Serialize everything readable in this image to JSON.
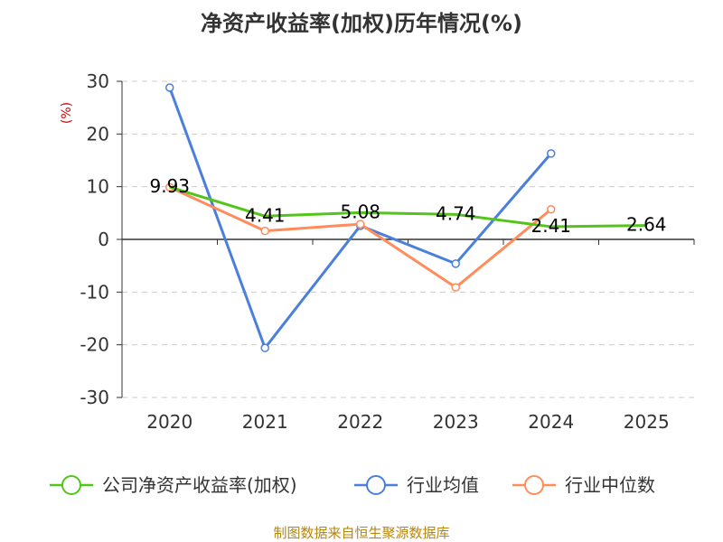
{
  "chart_data": {
    "type": "line",
    "title": "净资产收益率(加权)历年情况(%)",
    "ylabel": "(%)",
    "categories": [
      "2020",
      "2021",
      "2022",
      "2023",
      "2024",
      "2025"
    ],
    "ylim": [
      -30,
      30
    ],
    "yticks": [
      "30",
      "20",
      "10",
      "0",
      "-10",
      "-20",
      "-30"
    ],
    "grid": true,
    "legend_position": "bottom",
    "series": [
      {
        "name": "公司净资产收益率(加权)",
        "color": "#52c41a",
        "values": [
          9.93,
          4.41,
          5.08,
          4.74,
          2.41,
          2.64
        ],
        "labels": [
          "9.93",
          "4.41",
          "5.08",
          "4.74",
          "2.41",
          "2.64"
        ],
        "markers": false
      },
      {
        "name": "行业均值",
        "color": "#4a7fdc",
        "values": [
          28.8,
          -20.6,
          2.6,
          -4.6,
          16.3,
          null
        ],
        "markers": true
      },
      {
        "name": "行业中位数",
        "color": "#ff8c5a",
        "values": [
          9.9,
          1.6,
          2.9,
          -9.1,
          5.7,
          null
        ],
        "markers": true
      }
    ]
  },
  "source": "制图数据来自恒生聚源数据库"
}
